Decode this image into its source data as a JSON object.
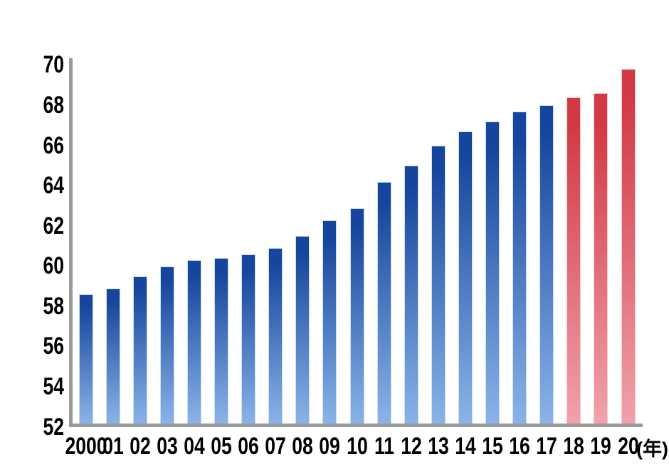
{
  "chart_data": {
    "type": "bar",
    "title": "",
    "xlabel": "",
    "ylabel": "",
    "x_unit_label": "(年)",
    "categories": [
      "2000",
      "01",
      "02",
      "03",
      "04",
      "05",
      "06",
      "07",
      "08",
      "09",
      "10",
      "11",
      "12",
      "13",
      "14",
      "15",
      "16",
      "17",
      "18",
      "19",
      "20"
    ],
    "values": [
      58.5,
      58.8,
      59.4,
      59.9,
      60.2,
      60.3,
      60.5,
      60.8,
      61.4,
      62.2,
      62.8,
      64.1,
      64.9,
      65.9,
      66.6,
      67.1,
      67.6,
      67.9,
      68.3,
      68.5,
      69.7
    ],
    "bar_colors": [
      "blue",
      "blue",
      "blue",
      "blue",
      "blue",
      "blue",
      "blue",
      "blue",
      "blue",
      "blue",
      "blue",
      "blue",
      "blue",
      "blue",
      "blue",
      "blue",
      "blue",
      "blue",
      "red",
      "red",
      "red"
    ],
    "bar_styles": {
      "blue": {
        "top": "#15459c",
        "bottom": "#8ab4e8",
        "edge": "#c9ddf6"
      },
      "red": {
        "top": "#d23944",
        "bottom": "#f0a2ac",
        "edge": "#f5c8ce"
      }
    },
    "ylim": [
      52,
      70
    ],
    "yticks": [
      52,
      54,
      56,
      58,
      60,
      62,
      64,
      66,
      68,
      70
    ],
    "grid": false,
    "legend": "none",
    "axis_color": "#9a9a9a",
    "label_color": "#000000",
    "background_color": "#ffffff"
  }
}
